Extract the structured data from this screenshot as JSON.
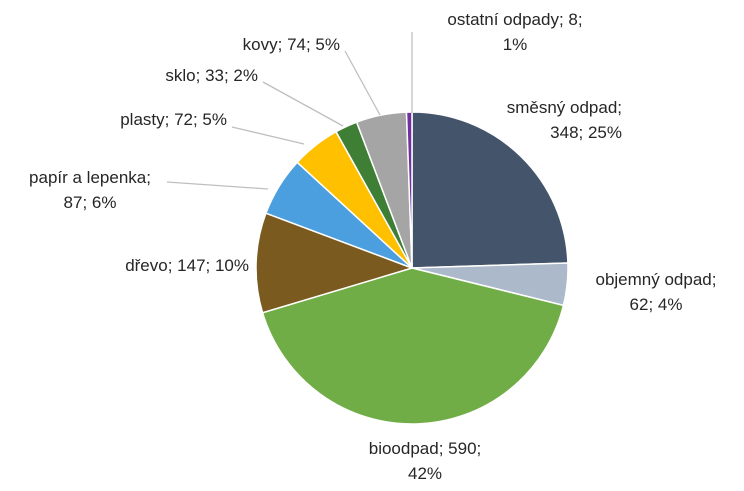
{
  "chart_data": {
    "type": "pie",
    "title": "",
    "slices": [
      {
        "name": "směsný odpad",
        "value": 348,
        "percent": "25%",
        "color": "#44546a",
        "label_lines": [
          "směsný odpad;",
          "348; 25%"
        ]
      },
      {
        "name": "objemný odpad",
        "value": 62,
        "percent": "4%",
        "color": "#acb9ca",
        "label_lines": [
          "objemný odpad;",
          "62; 4%"
        ]
      },
      {
        "name": "bioodpad",
        "value": 590,
        "percent": "42%",
        "color": "#70ad47",
        "label_lines": [
          "bioodpad; 590;",
          "42%"
        ]
      },
      {
        "name": "dřevo",
        "value": 147,
        "percent": "10%",
        "color": "#7a5a1e",
        "label_lines": [
          "dřevo; 147; 10%"
        ]
      },
      {
        "name": "papír a lepenka",
        "value": 87,
        "percent": "6%",
        "color": "#4b9fde",
        "label_lines": [
          "papír a lepenka;",
          "87; 6%"
        ]
      },
      {
        "name": "plasty",
        "value": 72,
        "percent": "5%",
        "color": "#ffc000",
        "label_lines": [
          "plasty; 72; 5%"
        ]
      },
      {
        "name": "sklo",
        "value": 33,
        "percent": "2%",
        "color": "#3f7f35",
        "label_lines": [
          "sklo; 33; 2%"
        ]
      },
      {
        "name": "kovy",
        "value": 74,
        "percent": "5%",
        "color": "#a5a5a5",
        "label_lines": [
          "kovy; 74; 5%"
        ]
      },
      {
        "name": "ostatní odpady",
        "value": 8,
        "percent": "1%",
        "color": "#7030a0",
        "label_lines": [
          "ostatní odpady; 8;",
          "1%"
        ]
      }
    ]
  }
}
